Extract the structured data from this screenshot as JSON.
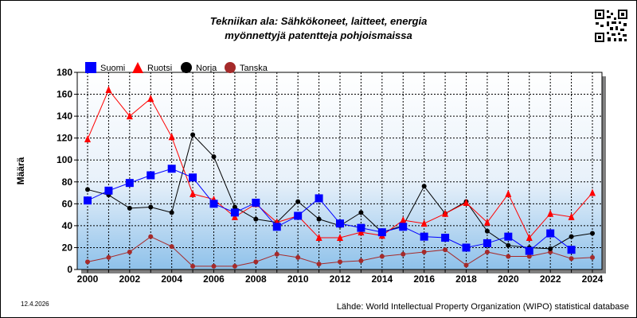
{
  "title_line1": "Tekniikan ala: Sähkökoneet, laitteet, energia",
  "title_line2": "myönnettyjä patentteja pohjoismaissa",
  "date": "12.4.2026",
  "source": "Lähde: World Intellectual Property Organization (WIPO) statistical database",
  "chart_data": {
    "type": "line",
    "ylabel": "Määrä",
    "ylim": [
      0,
      180
    ],
    "xlim": [
      2000,
      2024
    ],
    "yticks": [
      0,
      20,
      40,
      60,
      80,
      100,
      120,
      140,
      160,
      180
    ],
    "xticks": [
      2000,
      2002,
      2004,
      2006,
      2008,
      2010,
      2012,
      2014,
      2016,
      2018,
      2020,
      2022,
      2024
    ],
    "grid": true,
    "legend_position": "top-left",
    "series": [
      {
        "name": "Suomi",
        "color": "#0000ff",
        "marker": "square",
        "x": [
          2000,
          2001,
          2002,
          2003,
          2004,
          2005,
          2006,
          2007,
          2008,
          2009,
          2010,
          2011,
          2012,
          2013,
          2014,
          2015,
          2016,
          2017,
          2018,
          2019,
          2020,
          2021,
          2022,
          2023
        ],
        "values": [
          63,
          72,
          79,
          86,
          92,
          84,
          60,
          52,
          61,
          39,
          49,
          65,
          42,
          38,
          34,
          39,
          30,
          29,
          20,
          24,
          30,
          17,
          33,
          18
        ]
      },
      {
        "name": "Ruotsi",
        "color": "#ff0000",
        "marker": "triangle",
        "x": [
          2000,
          2001,
          2002,
          2003,
          2004,
          2005,
          2006,
          2007,
          2008,
          2009,
          2010,
          2011,
          2012,
          2013,
          2014,
          2015,
          2016,
          2017,
          2018,
          2019,
          2020,
          2021,
          2022,
          2023,
          2024
        ],
        "values": [
          119,
          164,
          140,
          156,
          121,
          69,
          64,
          48,
          60,
          43,
          49,
          29,
          29,
          34,
          31,
          45,
          42,
          51,
          61,
          43,
          69,
          29,
          51,
          48,
          70
        ]
      },
      {
        "name": "Norja",
        "color": "#000000",
        "marker": "circle",
        "x": [
          2000,
          2001,
          2002,
          2003,
          2004,
          2005,
          2006,
          2007,
          2008,
          2009,
          2010,
          2011,
          2012,
          2013,
          2014,
          2015,
          2016,
          2017,
          2018,
          2019,
          2020,
          2021,
          2022,
          2023,
          2024
        ],
        "values": [
          73,
          68,
          56,
          57,
          52,
          123,
          103,
          57,
          46,
          43,
          62,
          46,
          40,
          52,
          34,
          40,
          76,
          51,
          62,
          35,
          22,
          20,
          19,
          30,
          33
        ]
      },
      {
        "name": "Tanska",
        "color": "#a52a2a",
        "marker": "circle",
        "x": [
          2000,
          2001,
          2002,
          2003,
          2004,
          2005,
          2006,
          2007,
          2008,
          2009,
          2010,
          2011,
          2012,
          2013,
          2014,
          2015,
          2016,
          2017,
          2018,
          2019,
          2020,
          2021,
          2022,
          2023,
          2024
        ],
        "values": [
          7,
          11,
          16,
          30,
          21,
          3,
          3,
          3,
          7,
          14,
          11,
          5,
          7,
          8,
          12,
          14,
          16,
          18,
          4,
          16,
          12,
          12,
          16,
          10,
          11
        ]
      }
    ]
  }
}
